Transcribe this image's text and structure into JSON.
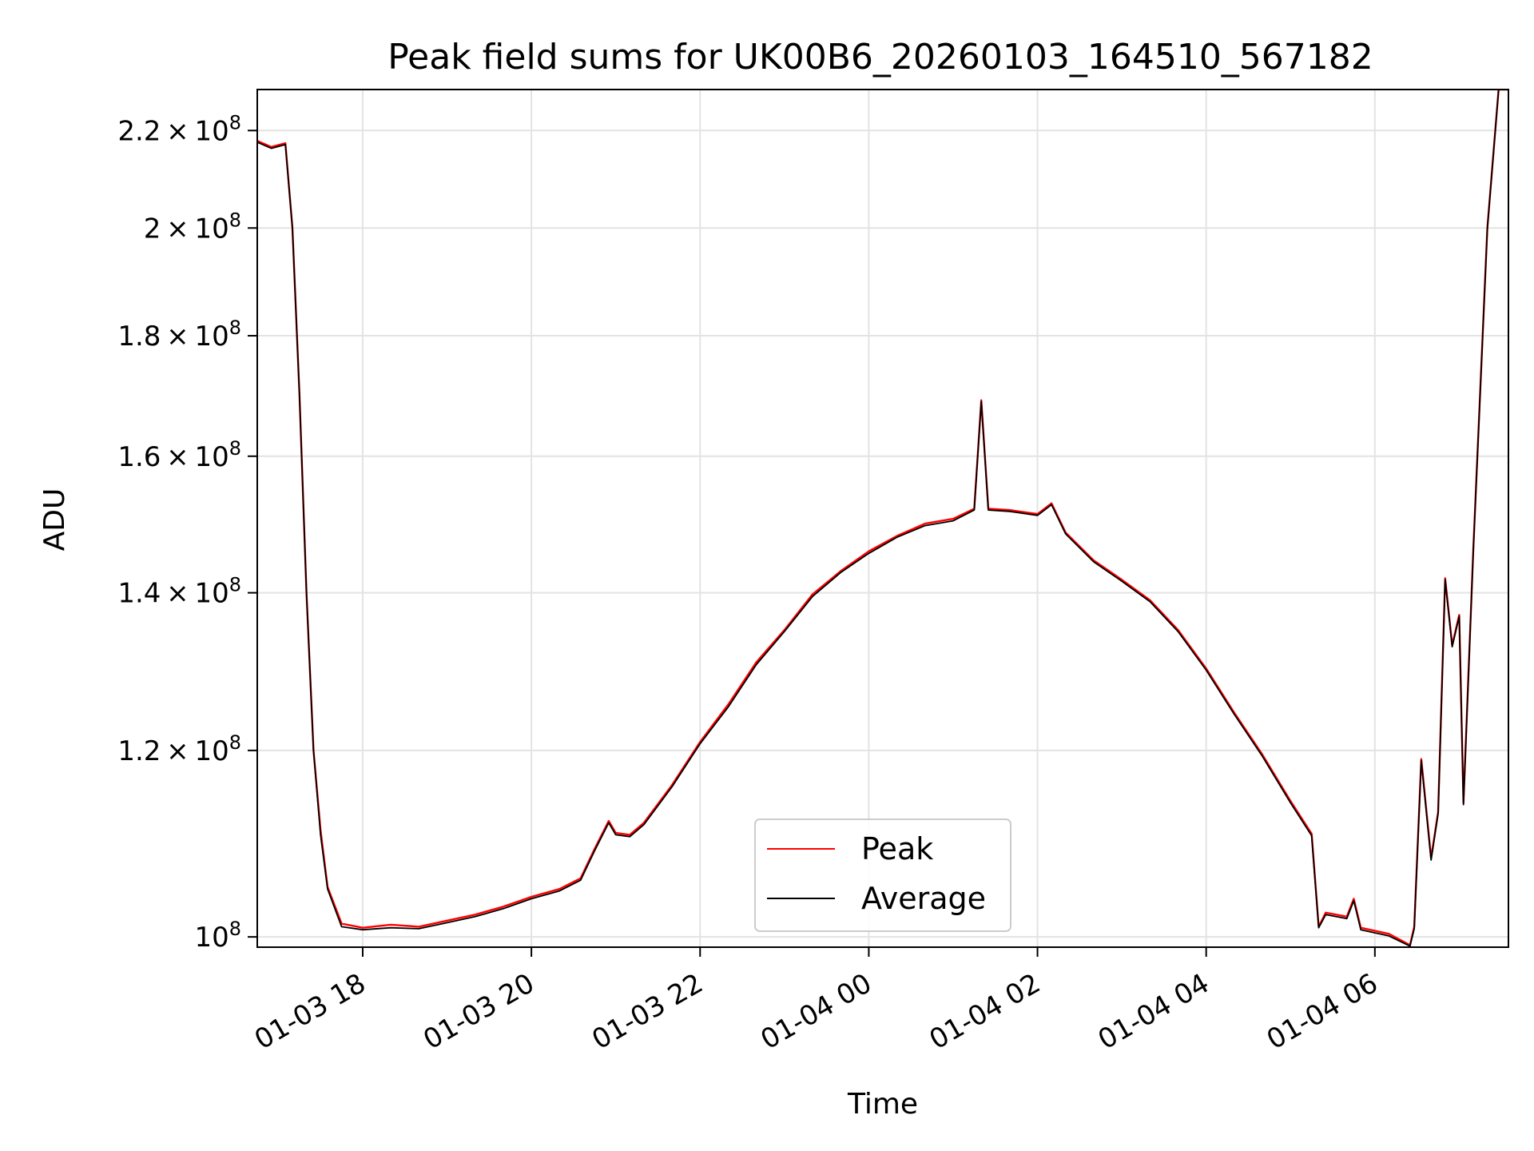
{
  "chart_data": {
    "type": "line",
    "title": "Peak field sums for UK00B6_20260103_164510_567182",
    "xlabel": "Time",
    "ylabel": "ADU",
    "x_axis": "datetime",
    "y_scale": "log",
    "grid": true,
    "legend_position": "lower center",
    "xlim": [
      "2026-01-03T16:45",
      "2026-01-04T07:35"
    ],
    "ylim": [
      99000000,
      229000000
    ],
    "x_ticks": [
      {
        "x": "2026-01-03T18:00",
        "label": "01-03 18"
      },
      {
        "x": "2026-01-03T20:00",
        "label": "01-03 20"
      },
      {
        "x": "2026-01-03T22:00",
        "label": "01-03 22"
      },
      {
        "x": "2026-01-04T00:00",
        "label": "01-04 00"
      },
      {
        "x": "2026-01-04T02:00",
        "label": "01-04 02"
      },
      {
        "x": "2026-01-04T04:00",
        "label": "01-04 04"
      },
      {
        "x": "2026-01-04T06:00",
        "label": "01-04 06"
      }
    ],
    "y_ticks": [
      {
        "value": 100000000,
        "mantissa": "",
        "exponent": "8"
      },
      {
        "value": 120000000,
        "mantissa": "1.2",
        "exponent": "8"
      },
      {
        "value": 140000000,
        "mantissa": "1.4",
        "exponent": "8"
      },
      {
        "value": 160000000,
        "mantissa": "1.6",
        "exponent": "8"
      },
      {
        "value": 180000000,
        "mantissa": "1.8",
        "exponent": "8"
      },
      {
        "value": 200000000,
        "mantissa": "2",
        "exponent": "8"
      },
      {
        "value": 220000000,
        "mantissa": "2.2",
        "exponent": "8"
      }
    ],
    "series": [
      {
        "name": "Peak",
        "color": "#ff0000",
        "points": [
          [
            "2026-01-03T16:45",
            217800000
          ],
          [
            "2026-01-03T16:55",
            216500000
          ],
          [
            "2026-01-03T17:05",
            217300000
          ],
          [
            "2026-01-03T17:10",
            200000000
          ],
          [
            "2026-01-03T17:15",
            170000000
          ],
          [
            "2026-01-03T17:20",
            140000000
          ],
          [
            "2026-01-03T17:25",
            120000000
          ],
          [
            "2026-01-03T17:30",
            111000000
          ],
          [
            "2026-01-03T17:35",
            105000000
          ],
          [
            "2026-01-03T17:45",
            101300000
          ],
          [
            "2026-01-03T18:00",
            100900000
          ],
          [
            "2026-01-03T18:20",
            101200000
          ],
          [
            "2026-01-03T18:40",
            101000000
          ],
          [
            "2026-01-03T19:00",
            101600000
          ],
          [
            "2026-01-03T19:20",
            102200000
          ],
          [
            "2026-01-03T19:40",
            103000000
          ],
          [
            "2026-01-03T20:00",
            104000000
          ],
          [
            "2026-01-03T20:20",
            104800000
          ],
          [
            "2026-01-03T20:35",
            105900000
          ],
          [
            "2026-01-03T20:45",
            109000000
          ],
          [
            "2026-01-03T20:55",
            112000000
          ],
          [
            "2026-01-03T21:00",
            110700000
          ],
          [
            "2026-01-03T21:10",
            110500000
          ],
          [
            "2026-01-03T21:20",
            111800000
          ],
          [
            "2026-01-03T21:40",
            116000000
          ],
          [
            "2026-01-03T22:00",
            121000000
          ],
          [
            "2026-01-03T22:20",
            125500000
          ],
          [
            "2026-01-03T22:40",
            130800000
          ],
          [
            "2026-01-03T23:00",
            135000000
          ],
          [
            "2026-01-03T23:20",
            139800000
          ],
          [
            "2026-01-03T23:40",
            143000000
          ],
          [
            "2026-01-04T00:00",
            145800000
          ],
          [
            "2026-01-04T00:20",
            148000000
          ],
          [
            "2026-01-04T00:40",
            149800000
          ],
          [
            "2026-01-04T01:00",
            150500000
          ],
          [
            "2026-01-04T01:15",
            152000000
          ],
          [
            "2026-01-04T01:20",
            169000000
          ],
          [
            "2026-01-04T01:25",
            152000000
          ],
          [
            "2026-01-04T01:40",
            151800000
          ],
          [
            "2026-01-04T02:00",
            151200000
          ],
          [
            "2026-01-04T02:10",
            152800000
          ],
          [
            "2026-01-04T02:20",
            148500000
          ],
          [
            "2026-01-04T02:40",
            144500000
          ],
          [
            "2026-01-04T03:00",
            141800000
          ],
          [
            "2026-01-04T03:20",
            139000000
          ],
          [
            "2026-01-04T03:40",
            135000000
          ],
          [
            "2026-01-04T04:00",
            130000000
          ],
          [
            "2026-01-04T04:20",
            124500000
          ],
          [
            "2026-01-04T04:40",
            119500000
          ],
          [
            "2026-01-04T05:00",
            114200000
          ],
          [
            "2026-01-04T05:15",
            110600000
          ],
          [
            "2026-01-04T05:20",
            101000000
          ],
          [
            "2026-01-04T05:25",
            102400000
          ],
          [
            "2026-01-04T05:40",
            102000000
          ],
          [
            "2026-01-04T05:45",
            103800000
          ],
          [
            "2026-01-04T05:50",
            100900000
          ],
          [
            "2026-01-04T06:10",
            100300000
          ],
          [
            "2026-01-04T06:25",
            99200000
          ],
          [
            "2026-01-04T06:28",
            101000000
          ],
          [
            "2026-01-04T06:33",
            119000000
          ],
          [
            "2026-01-04T06:40",
            108000000
          ],
          [
            "2026-01-04T06:45",
            113000000
          ],
          [
            "2026-01-04T06:50",
            142000000
          ],
          [
            "2026-01-04T06:55",
            133000000
          ],
          [
            "2026-01-04T07:00",
            137000000
          ],
          [
            "2026-01-04T07:03",
            114000000
          ],
          [
            "2026-01-04T07:10",
            146000000
          ],
          [
            "2026-01-04T07:20",
            200000000
          ],
          [
            "2026-01-04T07:28",
            229000000
          ],
          [
            "2026-01-04T07:35",
            229000000
          ]
        ]
      },
      {
        "name": "Average",
        "color": "#000000",
        "points": [
          [
            "2026-01-03T16:45",
            217500000
          ],
          [
            "2026-01-03T16:55",
            216200000
          ],
          [
            "2026-01-03T17:05",
            217000000
          ],
          [
            "2026-01-03T17:10",
            200000000
          ],
          [
            "2026-01-03T17:15",
            170000000
          ],
          [
            "2026-01-03T17:20",
            140000000
          ],
          [
            "2026-01-03T17:25",
            120000000
          ],
          [
            "2026-01-03T17:30",
            110500000
          ],
          [
            "2026-01-03T17:35",
            104800000
          ],
          [
            "2026-01-03T17:45",
            101000000
          ],
          [
            "2026-01-03T18:00",
            100700000
          ],
          [
            "2026-01-03T18:20",
            100900000
          ],
          [
            "2026-01-03T18:40",
            100800000
          ],
          [
            "2026-01-03T19:00",
            101400000
          ],
          [
            "2026-01-03T19:20",
            102000000
          ],
          [
            "2026-01-03T19:40",
            102800000
          ],
          [
            "2026-01-03T20:00",
            103800000
          ],
          [
            "2026-01-03T20:20",
            104600000
          ],
          [
            "2026-01-03T20:35",
            105700000
          ],
          [
            "2026-01-03T20:45",
            108800000
          ],
          [
            "2026-01-03T20:55",
            111800000
          ],
          [
            "2026-01-03T21:00",
            110500000
          ],
          [
            "2026-01-03T21:10",
            110300000
          ],
          [
            "2026-01-03T21:20",
            111600000
          ],
          [
            "2026-01-03T21:40",
            115800000
          ],
          [
            "2026-01-03T22:00",
            120800000
          ],
          [
            "2026-01-03T22:20",
            125200000
          ],
          [
            "2026-01-03T22:40",
            130500000
          ],
          [
            "2026-01-03T23:00",
            134800000
          ],
          [
            "2026-01-03T23:20",
            139500000
          ],
          [
            "2026-01-03T23:40",
            142800000
          ],
          [
            "2026-01-04T00:00",
            145500000
          ],
          [
            "2026-01-04T00:20",
            147800000
          ],
          [
            "2026-01-04T00:40",
            149500000
          ],
          [
            "2026-01-04T01:00",
            150200000
          ],
          [
            "2026-01-04T01:15",
            151800000
          ],
          [
            "2026-01-04T01:20",
            168800000
          ],
          [
            "2026-01-04T01:25",
            151800000
          ],
          [
            "2026-01-04T01:40",
            151600000
          ],
          [
            "2026-01-04T02:00",
            151000000
          ],
          [
            "2026-01-04T02:10",
            152600000
          ],
          [
            "2026-01-04T02:20",
            148300000
          ],
          [
            "2026-01-04T02:40",
            144300000
          ],
          [
            "2026-01-04T03:00",
            141600000
          ],
          [
            "2026-01-04T03:20",
            138800000
          ],
          [
            "2026-01-04T03:40",
            134800000
          ],
          [
            "2026-01-04T04:00",
            129800000
          ],
          [
            "2026-01-04T04:20",
            124300000
          ],
          [
            "2026-01-04T04:40",
            119300000
          ],
          [
            "2026-01-04T05:00",
            114000000
          ],
          [
            "2026-01-04T05:15",
            110400000
          ],
          [
            "2026-01-04T05:20",
            100900000
          ],
          [
            "2026-01-04T05:25",
            102200000
          ],
          [
            "2026-01-04T05:40",
            101800000
          ],
          [
            "2026-01-04T05:45",
            103600000
          ],
          [
            "2026-01-04T05:50",
            100700000
          ],
          [
            "2026-01-04T06:10",
            100100000
          ],
          [
            "2026-01-04T06:25",
            99100000
          ],
          [
            "2026-01-04T06:28",
            100800000
          ],
          [
            "2026-01-04T06:33",
            118800000
          ],
          [
            "2026-01-04T06:40",
            107800000
          ],
          [
            "2026-01-04T06:45",
            112800000
          ],
          [
            "2026-01-04T06:50",
            141800000
          ],
          [
            "2026-01-04T06:55",
            132800000
          ],
          [
            "2026-01-04T07:00",
            136800000
          ],
          [
            "2026-01-04T07:03",
            113800000
          ],
          [
            "2026-01-04T07:10",
            145800000
          ],
          [
            "2026-01-04T07:20",
            199800000
          ],
          [
            "2026-01-04T07:28",
            229000000
          ],
          [
            "2026-01-04T07:35",
            229000000
          ]
        ]
      }
    ],
    "legend": [
      {
        "label": "Peak",
        "color": "#ff0000"
      },
      {
        "label": "Average",
        "color": "#000000"
      }
    ]
  }
}
